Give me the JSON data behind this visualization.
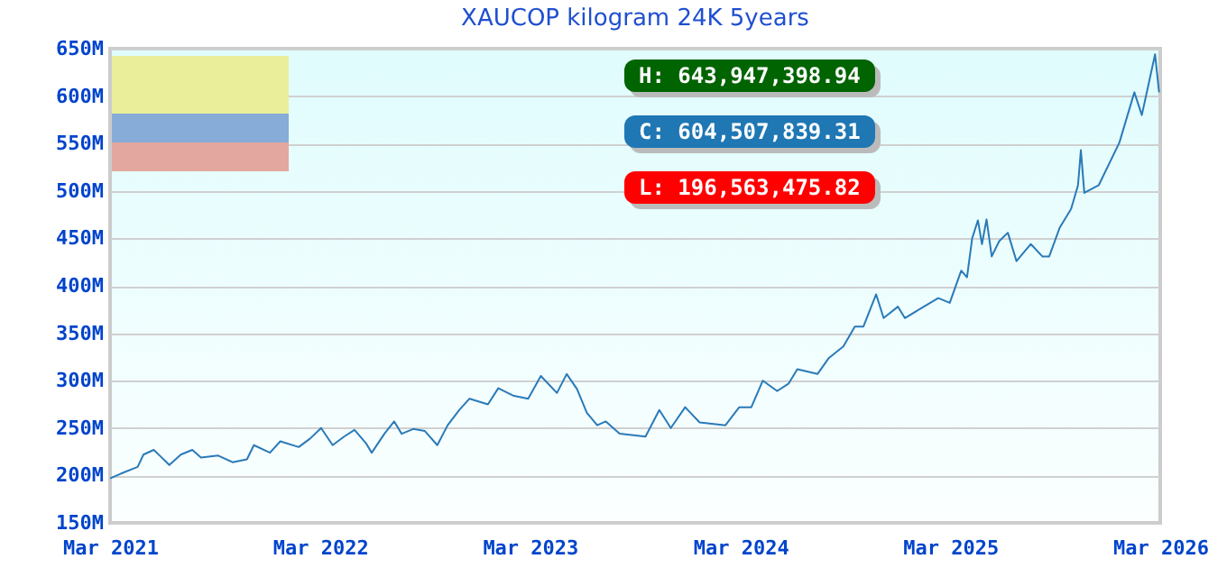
{
  "chart_data": {
    "type": "line",
    "title": "XAUCOP kilogram 24K 5years",
    "x": [
      "2021-03-01",
      "2021-03-20",
      "2021-04-18",
      "2021-04-28",
      "2021-05-16",
      "2021-05-28",
      "2021-06-12",
      "2021-07-02",
      "2021-07-22",
      "2021-08-06",
      "2021-09-05",
      "2021-09-30",
      "2021-10-25",
      "2021-11-06",
      "2021-12-04",
      "2021-12-22",
      "2022-01-23",
      "2022-02-12",
      "2022-03-03",
      "2022-03-23",
      "2022-04-12",
      "2022-04-30",
      "2022-05-20",
      "2022-05-30",
      "2022-06-21",
      "2022-07-08",
      "2022-07-21",
      "2022-08-10",
      "2022-08-30",
      "2022-09-21",
      "2022-10-09",
      "2022-10-29",
      "2022-11-16",
      "2022-12-18",
      "2023-01-05",
      "2023-02-01",
      "2023-02-26",
      "2023-03-20",
      "2023-04-17",
      "2023-05-04",
      "2023-05-22",
      "2023-06-08",
      "2023-06-26",
      "2023-07-11",
      "2023-08-04",
      "2023-09-18",
      "2023-10-12",
      "2023-11-01",
      "2023-11-26",
      "2023-12-21",
      "2024-02-04",
      "2024-02-28",
      "2024-03-20",
      "2024-04-09",
      "2024-05-04",
      "2024-05-24",
      "2024-06-08",
      "2024-07-13",
      "2024-08-02",
      "2024-08-27",
      "2024-09-16",
      "2024-10-01",
      "2024-10-23",
      "2024-11-05",
      "2024-11-30",
      "2024-12-12",
      "2025-01-14",
      "2025-02-08",
      "2025-02-28",
      "2025-03-20",
      "2025-03-30",
      "2025-04-08",
      "2025-04-18",
      "2025-04-25",
      "2025-05-03",
      "2025-05-12",
      "2025-05-25",
      "2025-06-09",
      "2025-06-24",
      "2025-07-19",
      "2025-08-08",
      "2025-08-20",
      "2025-09-07",
      "2025-09-27",
      "2025-10-09",
      "2025-10-14",
      "2025-10-20",
      "2025-11-14",
      "2025-12-20",
      "2026-01-15",
      "2026-01-28",
      "2026-02-20",
      "2026-02-27"
    ],
    "series": [
      {
        "color": "#2a7ab8",
        "values": [
          197,
          202,
          209,
          222,
          227,
          220,
          211,
          222,
          227,
          219,
          221,
          214,
          217,
          232,
          224,
          236,
          230,
          239,
          250,
          232,
          241,
          248,
          234,
          224,
          244,
          257,
          244,
          249,
          247,
          232,
          253,
          269,
          281,
          275,
          292,
          284,
          281,
          305,
          287,
          307,
          291,
          266,
          253,
          257,
          244,
          241,
          269,
          250,
          272,
          256,
          253,
          272,
          272,
          300,
          289,
          297,
          312,
          307,
          324,
          336,
          357,
          357,
          391,
          366,
          378,
          366,
          378,
          387,
          382,
          416,
          409,
          450,
          469,
          444,
          470,
          431,
          447,
          456,
          426,
          444,
          431,
          431,
          461,
          481,
          506,
          543,
          498,
          506,
          551,
          604,
          580,
          644,
          604
        ]
      }
    ],
    "xlim": [
      "2021-03-01",
      "2026-03-01"
    ],
    "xticks": [
      {
        "value": "2021-03-01",
        "label": "Mar 2021"
      },
      {
        "value": "2022-03-01",
        "label": "Mar 2022"
      },
      {
        "value": "2023-03-01",
        "label": "Mar 2023"
      },
      {
        "value": "2024-03-01",
        "label": "Mar 2024"
      },
      {
        "value": "2025-03-01",
        "label": "Mar 2025"
      },
      {
        "value": "2026-03-01",
        "label": "Mar 2026"
      }
    ],
    "ylim": [
      150,
      650
    ],
    "yticks": [
      {
        "value": 150,
        "label": "150M"
      },
      {
        "value": 200,
        "label": "200M"
      },
      {
        "value": 250,
        "label": "250M"
      },
      {
        "value": 300,
        "label": "300M"
      },
      {
        "value": 350,
        "label": "350M"
      },
      {
        "value": 400,
        "label": "400M"
      },
      {
        "value": 450,
        "label": "450M"
      },
      {
        "value": 500,
        "label": "500M"
      },
      {
        "value": 550,
        "label": "550M"
      },
      {
        "value": 600,
        "label": "600M"
      },
      {
        "value": 650,
        "label": "650M"
      }
    ],
    "grid": "y",
    "annotations": [
      "H: 643,947,398.94",
      "C: 604,507,839.31",
      "L: 196,563,475.82"
    ]
  }
}
